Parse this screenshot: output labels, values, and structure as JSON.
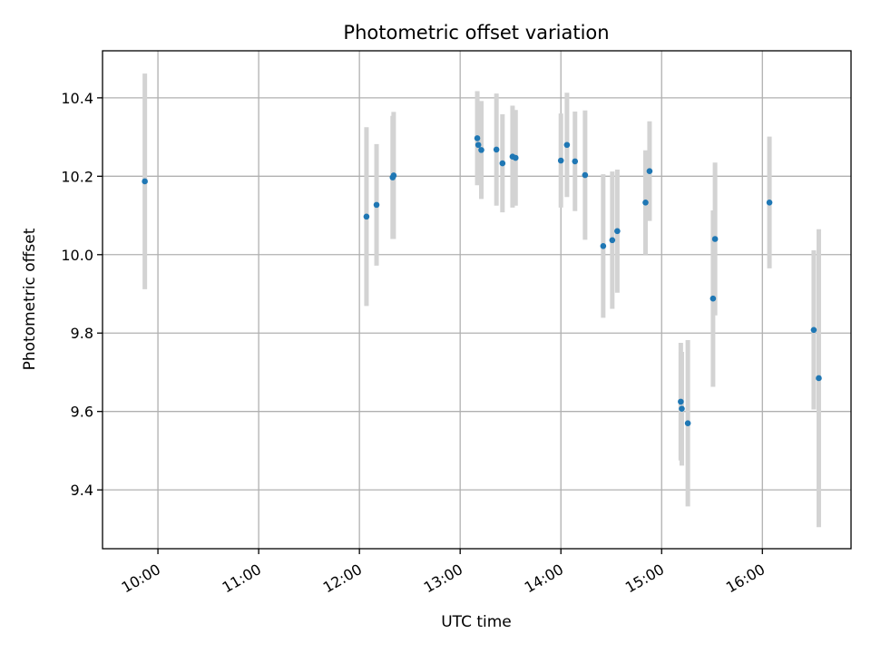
{
  "chart_data": {
    "type": "scatter",
    "title": "Photometric offset variation",
    "xlabel": "UTC time",
    "ylabel": "Photometric offset",
    "grid": true,
    "xlim": [
      9.45,
      16.88
    ],
    "ylim": [
      9.25,
      10.52
    ],
    "x_ticks": [
      {
        "value": 10,
        "label": "10:00"
      },
      {
        "value": 11,
        "label": "11:00"
      },
      {
        "value": 12,
        "label": "12:00"
      },
      {
        "value": 13,
        "label": "13:00"
      },
      {
        "value": 14,
        "label": "14:00"
      },
      {
        "value": 15,
        "label": "15:00"
      },
      {
        "value": 16,
        "label": "16:00"
      }
    ],
    "y_ticks": [
      {
        "value": 9.4,
        "label": "9.4"
      },
      {
        "value": 9.6,
        "label": "9.6"
      },
      {
        "value": 9.8,
        "label": "9.8"
      },
      {
        "value": 10.0,
        "label": "10.0"
      },
      {
        "value": 10.2,
        "label": "10.2"
      },
      {
        "value": 10.4,
        "label": "10.4"
      }
    ],
    "point_color": "#1f77b4",
    "errorbar_color": "#d3d3d3",
    "points": [
      {
        "x": 9.87,
        "y": 10.187,
        "err": 0.275
      },
      {
        "x": 12.07,
        "y": 10.097,
        "err": 0.228
      },
      {
        "x": 12.17,
        "y": 10.127,
        "err": 0.155
      },
      {
        "x": 12.33,
        "y": 10.197,
        "err": 0.157
      },
      {
        "x": 12.34,
        "y": 10.202,
        "err": 0.162
      },
      {
        "x": 13.17,
        "y": 10.297,
        "err": 0.12
      },
      {
        "x": 13.18,
        "y": 10.28,
        "err": 0.1
      },
      {
        "x": 13.21,
        "y": 10.267,
        "err": 0.125
      },
      {
        "x": 13.36,
        "y": 10.268,
        "err": 0.143
      },
      {
        "x": 13.42,
        "y": 10.233,
        "err": 0.125
      },
      {
        "x": 13.52,
        "y": 10.25,
        "err": 0.13
      },
      {
        "x": 13.55,
        "y": 10.247,
        "err": 0.122
      },
      {
        "x": 14.0,
        "y": 10.24,
        "err": 0.12
      },
      {
        "x": 14.06,
        "y": 10.28,
        "err": 0.133
      },
      {
        "x": 14.14,
        "y": 10.238,
        "err": 0.127
      },
      {
        "x": 14.24,
        "y": 10.203,
        "err": 0.165
      },
      {
        "x": 14.42,
        "y": 10.022,
        "err": 0.183
      },
      {
        "x": 14.51,
        "y": 10.037,
        "err": 0.175
      },
      {
        "x": 14.56,
        "y": 10.06,
        "err": 0.157
      },
      {
        "x": 14.84,
        "y": 10.133,
        "err": 0.133
      },
      {
        "x": 14.88,
        "y": 10.213,
        "err": 0.127
      },
      {
        "x": 15.19,
        "y": 9.625,
        "err": 0.15
      },
      {
        "x": 15.2,
        "y": 9.607,
        "err": 0.145
      },
      {
        "x": 15.26,
        "y": 9.57,
        "err": 0.212
      },
      {
        "x": 15.51,
        "y": 9.888,
        "err": 0.225
      },
      {
        "x": 15.53,
        "y": 10.04,
        "err": 0.195
      },
      {
        "x": 16.07,
        "y": 10.133,
        "err": 0.168
      },
      {
        "x": 16.51,
        "y": 9.808,
        "err": 0.203
      },
      {
        "x": 16.56,
        "y": 9.685,
        "err": 0.38
      }
    ]
  }
}
